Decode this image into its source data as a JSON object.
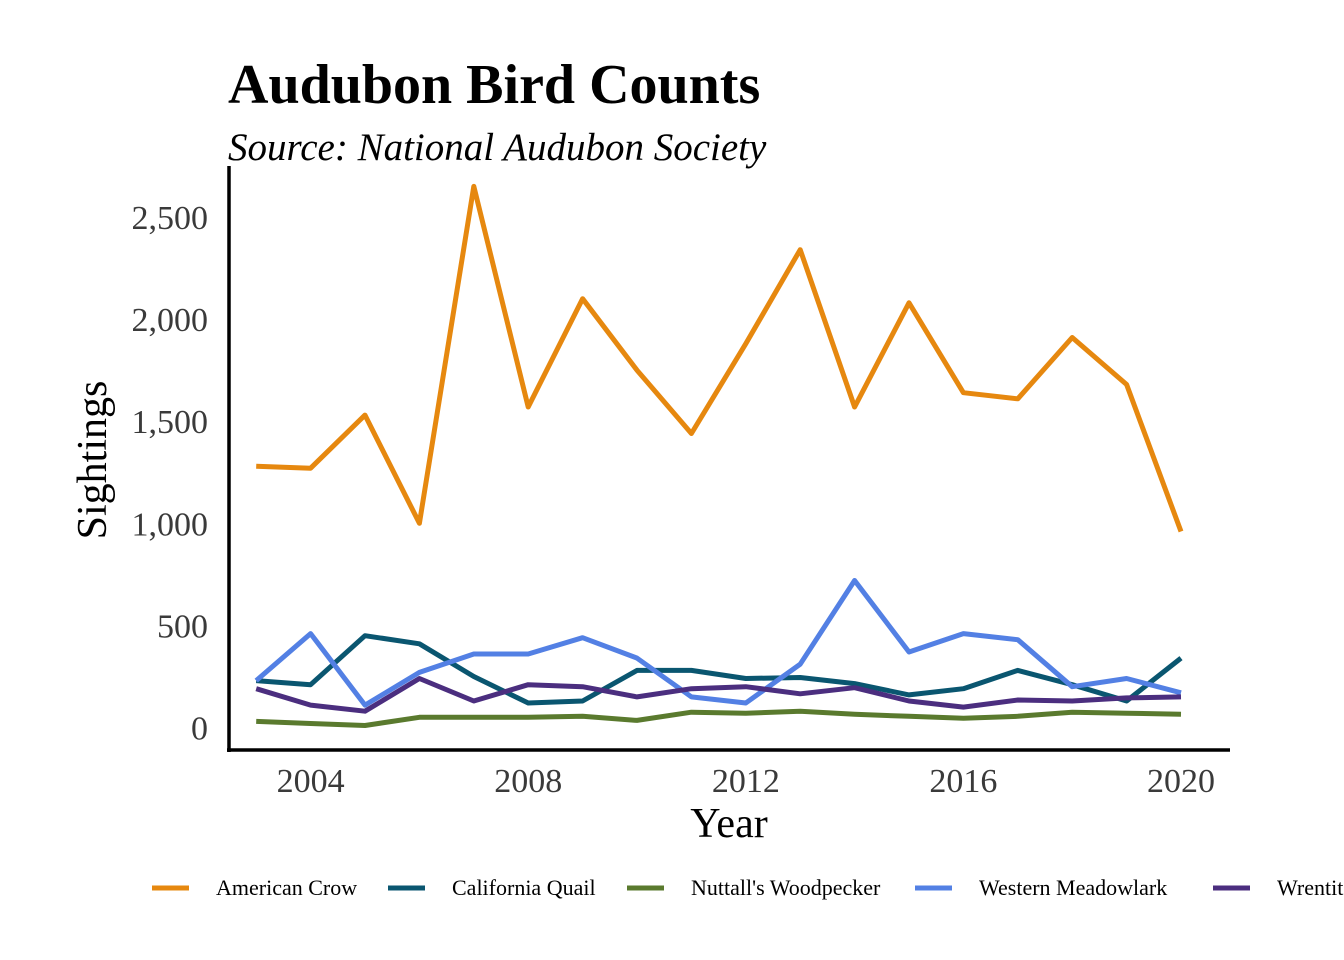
{
  "chart_data": {
    "type": "line",
    "title": "Audubon Bird Counts",
    "subtitle": "Source: National Audubon Society",
    "xlabel": "Year",
    "ylabel": "Sightings",
    "xlim": [
      2002.5,
      2020.9
    ],
    "ylim": [
      -110,
      2750
    ],
    "x_ticks": [
      2004,
      2008,
      2012,
      2016,
      2020
    ],
    "x_tick_labels": [
      "2004",
      "2008",
      "2012",
      "2016",
      "2020"
    ],
    "y_ticks": [
      0,
      500,
      1000,
      1500,
      2000,
      2500
    ],
    "y_tick_labels": [
      "0",
      "500",
      "1,000",
      "1,500",
      "2,000",
      "2,500"
    ],
    "grid": false,
    "legend_position": "bottom",
    "x": [
      2003,
      2004,
      2005,
      2006,
      2007,
      2008,
      2009,
      2010,
      2011,
      2012,
      2013,
      2014,
      2015,
      2016,
      2017,
      2018,
      2019,
      2020
    ],
    "series": [
      {
        "name": "American Crow",
        "color": "#E6880F",
        "values": [
          1280,
          1270,
          1530,
          1000,
          2650,
          1570,
          2100,
          1750,
          1440,
          1880,
          2340,
          1570,
          2080,
          1640,
          1610,
          1910,
          1680,
          960
        ]
      },
      {
        "name": "California Quail",
        "color": "#0A5670",
        "values": [
          230,
          210,
          450,
          410,
          250,
          120,
          130,
          280,
          280,
          240,
          245,
          215,
          160,
          190,
          280,
          210,
          130,
          340
        ]
      },
      {
        "name": "Nuttall's Woodpecker",
        "color": "#5A7A2E",
        "values": [
          30,
          20,
          10,
          50,
          50,
          50,
          55,
          35,
          75,
          70,
          80,
          65,
          55,
          45,
          55,
          75,
          70,
          65
        ]
      },
      {
        "name": "Western Meadowlark",
        "color": "#5380E4",
        "values": [
          230,
          460,
          110,
          270,
          360,
          360,
          440,
          340,
          150,
          120,
          310,
          720,
          370,
          460,
          430,
          200,
          240,
          170
        ]
      },
      {
        "name": "Wrentit",
        "color": "#4B2E7F",
        "values": [
          190,
          110,
          80,
          240,
          130,
          210,
          200,
          150,
          190,
          200,
          165,
          195,
          130,
          100,
          135,
          130,
          145,
          150
        ]
      }
    ]
  }
}
